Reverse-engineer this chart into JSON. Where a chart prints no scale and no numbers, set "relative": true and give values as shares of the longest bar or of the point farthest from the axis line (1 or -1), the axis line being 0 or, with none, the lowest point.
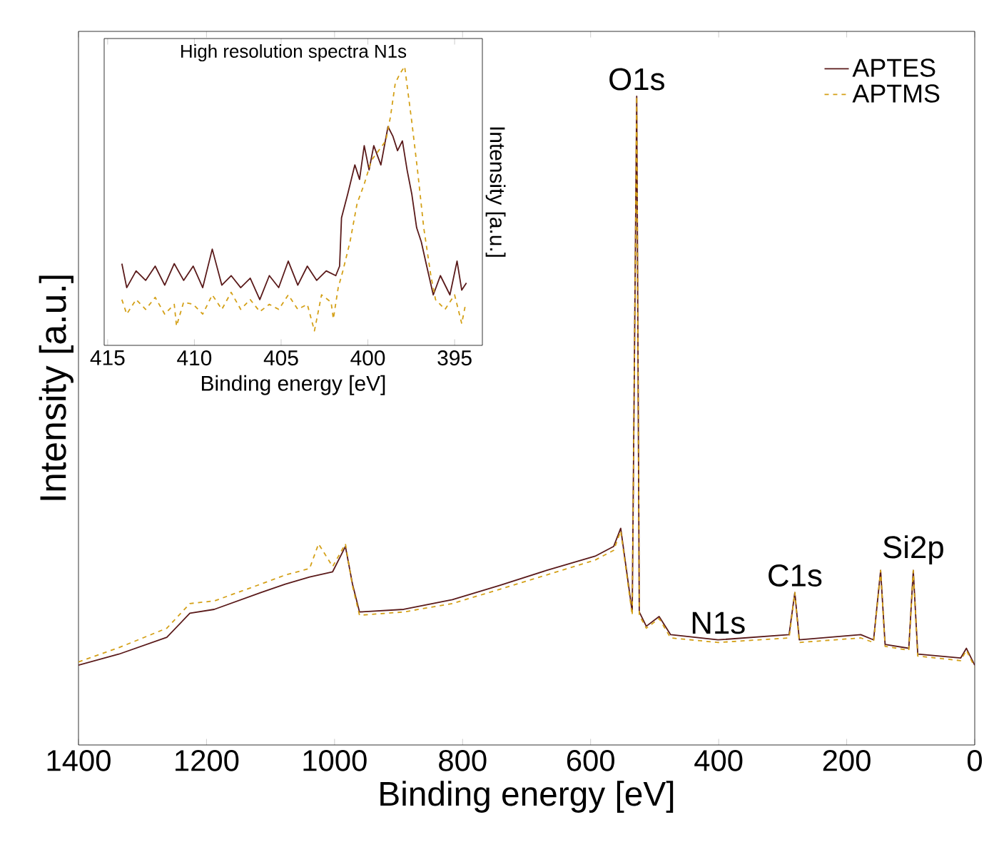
{
  "chart_data": [
    {
      "type": "line",
      "xlabel": "Binding energy [eV]",
      "ylabel": "Intensity [a.u.]",
      "relative": true,
      "xlim": [
        1400,
        0
      ],
      "xticks": [
        1400,
        1200,
        1000,
        800,
        600,
        400,
        200,
        0
      ],
      "legend": "top right",
      "annotations": [
        {
          "text": "O1s",
          "x": 528,
          "y": 1.0
        },
        {
          "text": "N1s",
          "x": 401,
          "y": 0.162
        },
        {
          "text": "C1s",
          "x": 281,
          "y": 0.235
        },
        {
          "text": "Si2p",
          "x": 96,
          "y": 0.269
        }
      ],
      "series": [
        {
          "name": "APTES",
          "color": "#5a1a1a",
          "line_style": "solid",
          "x": [
            1400,
            1337,
            1262,
            1226,
            1188,
            1115,
            1077,
            1039,
            1003,
            983,
            972,
            961,
            892,
            816,
            742,
            669,
            593,
            564,
            553,
            535,
            528,
            524,
            513,
            493,
            475,
            401,
            290,
            281,
            274,
            178,
            158,
            147,
            140,
            103,
            96,
            89,
            22,
            13,
            0
          ],
          "values": [
            0.123,
            0.14,
            0.166,
            0.203,
            0.209,
            0.235,
            0.248,
            0.259,
            0.267,
            0.306,
            0.248,
            0.205,
            0.209,
            0.224,
            0.246,
            0.269,
            0.291,
            0.306,
            0.334,
            0.205,
            1.0,
            0.205,
            0.183,
            0.198,
            0.17,
            0.162,
            0.17,
            0.235,
            0.162,
            0.17,
            0.162,
            0.269,
            0.155,
            0.149,
            0.269,
            0.14,
            0.134,
            0.149,
            0.123
          ]
        },
        {
          "name": "APTMS",
          "color": "#d4a017",
          "line_style": "dashed",
          "x": [
            1400,
            1337,
            1262,
            1226,
            1188,
            1115,
            1077,
            1039,
            1025,
            1003,
            983,
            972,
            961,
            892,
            816,
            742,
            669,
            593,
            564,
            553,
            535,
            528,
            524,
            513,
            493,
            475,
            401,
            290,
            281,
            274,
            178,
            158,
            147,
            140,
            103,
            96,
            89,
            22,
            13,
            0
          ],
          "values": [
            0.128,
            0.15,
            0.18,
            0.218,
            0.222,
            0.248,
            0.262,
            0.272,
            0.31,
            0.275,
            0.31,
            0.245,
            0.2,
            0.205,
            0.218,
            0.24,
            0.262,
            0.285,
            0.3,
            0.33,
            0.2,
            1.0,
            0.2,
            0.18,
            0.195,
            0.165,
            0.158,
            0.165,
            0.235,
            0.158,
            0.165,
            0.158,
            0.269,
            0.152,
            0.146,
            0.269,
            0.137,
            0.13,
            0.146,
            0.12
          ]
        }
      ]
    },
    {
      "type": "line",
      "title": "High resolution spectra N1s",
      "xlabel": "Binding energy [eV]",
      "ylabel": "Intensity [a.u.]",
      "relative": true,
      "xlim": [
        415.2,
        393.4
      ],
      "xticks": [
        415,
        410,
        405,
        400,
        395
      ],
      "series": [
        {
          "color": "#5a1a1a",
          "line_style": "solid",
          "x": [
            414.18,
            413.9,
            413.36,
            412.81,
            412.26,
            411.71,
            411.16,
            410.62,
            410.07,
            409.52,
            408.97,
            408.42,
            407.88,
            407.33,
            406.78,
            406.23,
            405.68,
            405.14,
            404.59,
            404.04,
            403.49,
            402.95,
            402.4,
            401.85,
            401.63,
            401.52,
            401.16,
            400.75,
            400.48,
            400.21,
            399.93,
            399.66,
            399.25,
            398.84,
            398.56,
            398.29,
            398.01,
            397.74,
            397.47,
            397.19,
            396.92,
            396.64,
            396.23,
            395.82,
            395.27,
            394.86,
            394.59,
            394.32
          ],
          "values": [
            0.293,
            0.207,
            0.267,
            0.233,
            0.284,
            0.216,
            0.293,
            0.233,
            0.284,
            0.207,
            0.345,
            0.216,
            0.25,
            0.207,
            0.241,
            0.164,
            0.25,
            0.207,
            0.302,
            0.216,
            0.284,
            0.233,
            0.267,
            0.25,
            0.284,
            0.457,
            0.543,
            0.647,
            0.595,
            0.716,
            0.629,
            0.716,
            0.647,
            0.784,
            0.75,
            0.698,
            0.733,
            0.629,
            0.543,
            0.422,
            0.371,
            0.293,
            0.181,
            0.25,
            0.181,
            0.302,
            0.198,
            0.224
          ]
        },
        {
          "color": "#d4a017",
          "line_style": "dashed",
          "x": [
            414.18,
            413.9,
            413.36,
            412.81,
            412.26,
            411.71,
            411.16,
            411.03,
            410.62,
            410.07,
            409.52,
            408.97,
            408.42,
            407.88,
            407.33,
            406.78,
            406.23,
            405.68,
            405.14,
            404.59,
            404.04,
            403.49,
            403.08,
            402.67,
            402.12,
            401.99,
            401.71,
            401.44,
            401.03,
            400.62,
            400.21,
            399.79,
            399.38,
            398.97,
            398.7,
            398.42,
            398.15,
            397.88,
            397.47,
            397.14,
            396.78,
            396.37,
            396.1,
            395.55,
            395.0,
            394.59,
            394.4
          ],
          "values": [
            0.164,
            0.112,
            0.164,
            0.129,
            0.172,
            0.112,
            0.147,
            0.069,
            0.155,
            0.147,
            0.112,
            0.181,
            0.129,
            0.19,
            0.129,
            0.164,
            0.121,
            0.147,
            0.129,
            0.181,
            0.129,
            0.147,
            0.052,
            0.181,
            0.155,
            0.095,
            0.207,
            0.267,
            0.371,
            0.509,
            0.578,
            0.664,
            0.698,
            0.733,
            0.819,
            0.94,
            0.974,
            1.0,
            0.802,
            0.629,
            0.422,
            0.25,
            0.164,
            0.129,
            0.181,
            0.078,
            0.138
          ]
        }
      ]
    }
  ]
}
